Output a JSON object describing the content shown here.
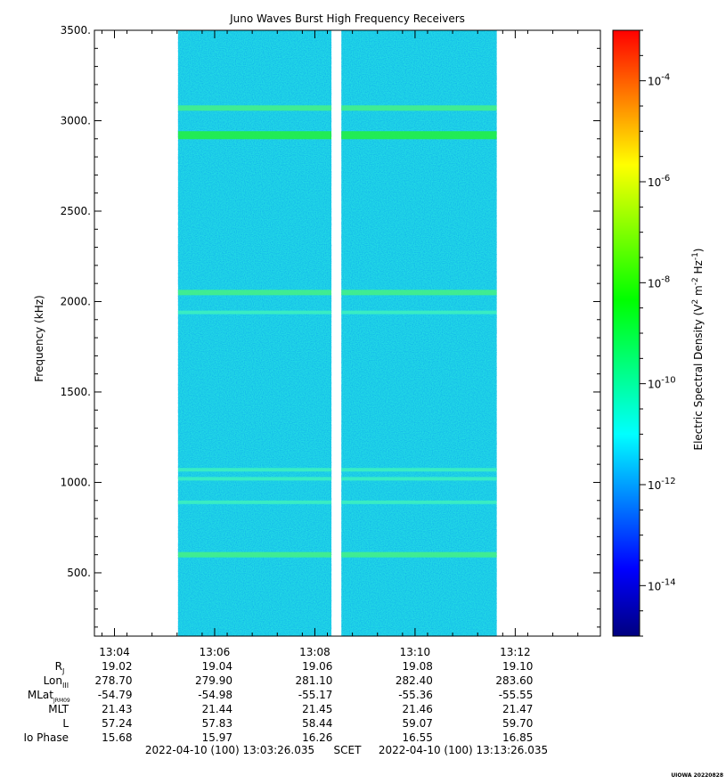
{
  "chart_data": {
    "type": "heatmap",
    "title": "Juno Waves Burst High Frequency Receivers",
    "ylabel": "Frequency (kHz)",
    "ylim": [
      150,
      3500
    ],
    "yticks": [
      "500.",
      "1000.",
      "1500.",
      "2000.",
      "2500.",
      "3000.",
      "3500."
    ],
    "ytick_values": [
      500,
      1000,
      1500,
      2000,
      2500,
      3000,
      3500
    ],
    "xlim_minutes": [
      3.6,
      13.7
    ],
    "xticks": [
      "13:04",
      "13:06",
      "13:08",
      "13:10",
      "13:12"
    ],
    "xtick_minutes": [
      4,
      6,
      8,
      10,
      12
    ],
    "data_blocks_minutes": [
      [
        5.27,
        8.33
      ],
      [
        8.53,
        11.63
      ]
    ],
    "emission_bands_khz": [
      {
        "freq": 3070,
        "level": "moderate"
      },
      {
        "freq": 2920,
        "level": "strong"
      },
      {
        "freq": 2050,
        "level": "moderate"
      },
      {
        "freq": 1940,
        "level": "weak"
      },
      {
        "freq": 1070,
        "level": "weak"
      },
      {
        "freq": 1020,
        "level": "weak"
      },
      {
        "freq": 890,
        "level": "weak"
      },
      {
        "freq": 600,
        "level": "moderate"
      }
    ],
    "background_level": "~1e-12",
    "colorbar": {
      "label": "Electric Spectral Density (V",
      "label_sup1": "2",
      "label_mid": " m",
      "label_sup2": "-2",
      "label_mid2": " Hz",
      "label_sup3": "-1",
      "label_end": ")",
      "ticks": [
        {
          "exp": "-4",
          "value": 0.0001
        },
        {
          "exp": "-6",
          "value": 1e-06
        },
        {
          "exp": "-8",
          "value": 1e-08
        },
        {
          "exp": "-10",
          "value": 1e-10
        },
        {
          "exp": "-12",
          "value": 1e-12
        },
        {
          "exp": "-14",
          "value": 1e-14
        }
      ],
      "log_range": [
        -15,
        -3
      ],
      "colors": [
        "#00007f",
        "#0000ff",
        "#007fff",
        "#00ffff",
        "#00ff7f",
        "#00ff00",
        "#7fff00",
        "#ffff00",
        "#ff7f00",
        "#ff0000"
      ]
    },
    "ephemeris": {
      "rows": [
        {
          "label": "R",
          "sub": "J",
          "values": [
            "19.02",
            "19.04",
            "19.06",
            "19.08",
            "19.10"
          ]
        },
        {
          "label": "Lon",
          "sub": "III",
          "values": [
            "278.70",
            "279.90",
            "281.10",
            "282.40",
            "283.60"
          ]
        },
        {
          "label": "MLat",
          "sub": "JRM09",
          "values": [
            "-54.79",
            "-54.98",
            "-55.17",
            "-55.36",
            "-55.55"
          ]
        },
        {
          "label": "MLT",
          "sub": "",
          "values": [
            "21.43",
            "21.44",
            "21.45",
            "21.46",
            "21.47"
          ]
        },
        {
          "label": "L",
          "sub": "",
          "values": [
            "57.24",
            "57.83",
            "58.44",
            "59.07",
            "59.70"
          ]
        },
        {
          "label": "Io Phase",
          "sub": "",
          "values": [
            "15.68",
            "15.97",
            "16.26",
            "16.55",
            "16.85"
          ]
        }
      ]
    },
    "time_range": {
      "start": "2022-04-10 (100) 13:03:26.035",
      "axis": "SCET",
      "end": "2022-04-10 (100) 13:13:26.035"
    },
    "credit": "UIOWA 20220828"
  }
}
